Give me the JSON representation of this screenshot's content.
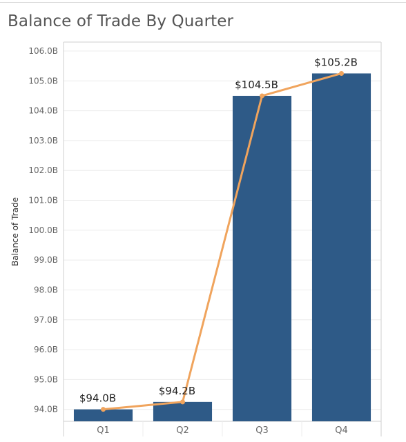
{
  "title": "Balance of Trade By Quarter",
  "colors": {
    "bar": "#2e5a87",
    "line": "#f0a45d",
    "grid": "#ececec",
    "axis": "#cfcfcf"
  },
  "chart_data": {
    "type": "bar",
    "title": "Balance of Trade By Quarter",
    "xlabel": "",
    "ylabel": "Balance of Trade",
    "categories": [
      "Q1",
      "Q2",
      "Q3",
      "Q4"
    ],
    "series": [
      {
        "type": "bar",
        "values": [
          94.0,
          94.25,
          104.5,
          105.25
        ]
      },
      {
        "type": "line",
        "values": [
          94.0,
          94.25,
          104.5,
          105.25
        ]
      }
    ],
    "data_labels": [
      "$94.0B",
      "$94.2B",
      "$104.5B",
      "$105.2B"
    ],
    "yticks": [
      "94.0B",
      "95.0B",
      "96.0B",
      "97.0B",
      "98.0B",
      "99.0B",
      "100.0B",
      "101.0B",
      "102.0B",
      "103.0B",
      "104.0B",
      "105.0B",
      "106.0B"
    ],
    "ytick_values": [
      94,
      95,
      96,
      97,
      98,
      99,
      100,
      101,
      102,
      103,
      104,
      105,
      106
    ],
    "ylim": [
      93.6,
      106.3
    ],
    "grid": true,
    "legend": "none"
  }
}
